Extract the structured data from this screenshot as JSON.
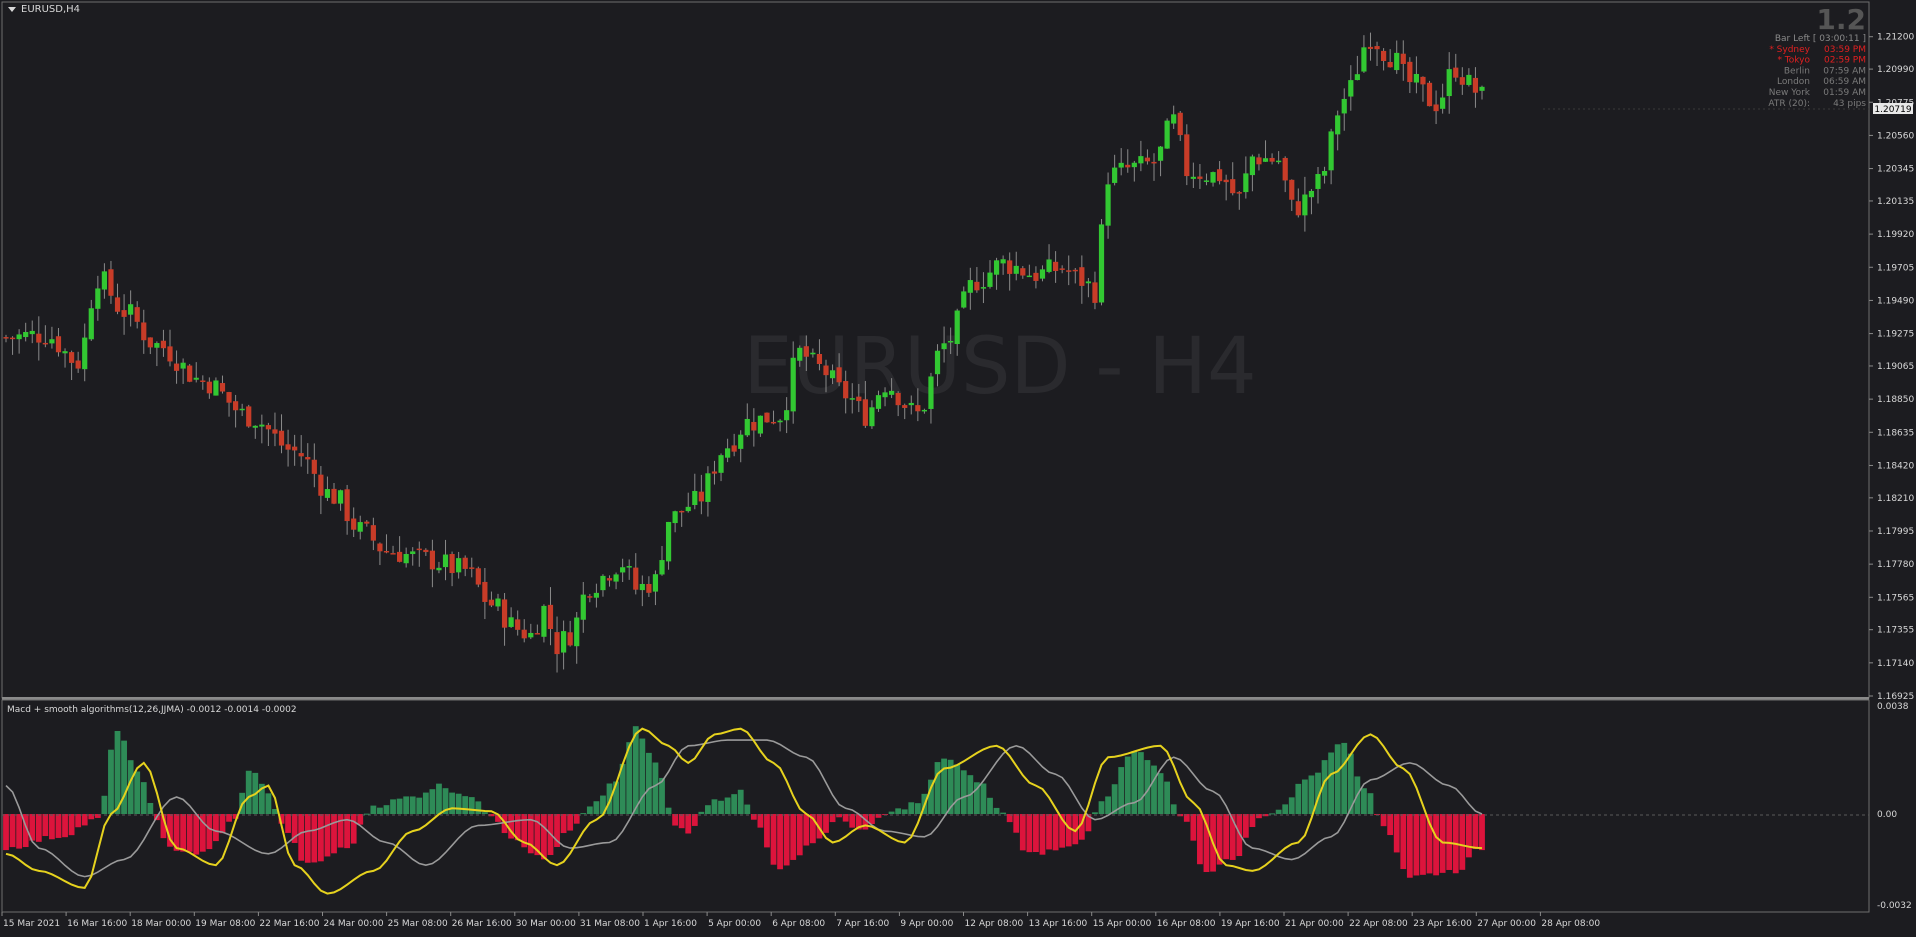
{
  "window": {
    "title": "EURUSD,H4"
  },
  "watermark": "EURUSD - H4",
  "price_readout": {
    "big": "1.2",
    "current": "1.20719"
  },
  "sessions": [
    {
      "name": "Bar Left",
      "time": "[ 03:00:11 ]",
      "color": "#8a8a8a"
    },
    {
      "name": "* Sydney",
      "time": "03:59 PM",
      "color": "#e02020"
    },
    {
      "name": "* Tokyo",
      "time": "02:59 PM",
      "color": "#e02020"
    },
    {
      "name": "Berlin",
      "time": "07:59 AM",
      "color": "#7a7a7a"
    },
    {
      "name": "London",
      "time": "06:59 AM",
      "color": "#7a7a7a"
    },
    {
      "name": "New York",
      "time": "01:59 AM",
      "color": "#7a7a7a"
    },
    {
      "name": "ATR (20):",
      "time": "43 pips",
      "color": "#7a7a7a"
    }
  ],
  "indicator": {
    "label": "Macd + smooth algorithms(12,26,JJMA) -0.0012 -0.0014 -0.0002"
  },
  "colors": {
    "bull": "#32c832",
    "bear": "#c83c28",
    "hist_pos": "#2e8b57",
    "hist_neg": "#dc143c",
    "macd_line": "#e6d21e",
    "signal_line": "#9a9a9a"
  },
  "chart_data": [
    {
      "type": "candlestick",
      "title": "EURUSD,H4",
      "ylim": [
        1.16925,
        1.2125
      ],
      "yticks": [
        "1.21200",
        "1.20990",
        "1.20775",
        "1.20560",
        "1.20345",
        "1.20135",
        "1.19920",
        "1.19705",
        "1.19490",
        "1.19275",
        "1.19065",
        "1.18850",
        "1.18635",
        "1.18420",
        "1.18210",
        "1.17995",
        "1.17780",
        "1.17565",
        "1.17355",
        "1.17140",
        "1.16925"
      ],
      "xticks": [
        "15 Mar 2021",
        "16 Mar 16:00",
        "18 Mar 00:00",
        "19 Mar 08:00",
        "22 Mar 16:00",
        "24 Mar 00:00",
        "25 Mar 08:00",
        "26 Mar 16:00",
        "30 Mar 00:00",
        "31 Mar 08:00",
        "1 Apr 16:00",
        "5 Apr 00:00",
        "6 Apr 08:00",
        "7 Apr 16:00",
        "9 Apr 00:00",
        "12 Apr 08:00",
        "13 Apr 16:00",
        "15 Apr 00:00",
        "16 Apr 08:00",
        "19 Apr 16:00",
        "21 Apr 00:00",
        "22 Apr 08:00",
        "23 Apr 16:00",
        "27 Apr 00:00",
        "28 Apr 08:00"
      ],
      "close_path": [
        [
          0,
          1.1925
        ],
        [
          6,
          1.1927
        ],
        [
          11,
          1.1909
        ],
        [
          14,
          1.1964
        ],
        [
          18,
          1.1942
        ],
        [
          23,
          1.192
        ],
        [
          30,
          1.1897
        ],
        [
          37,
          1.1874
        ],
        [
          44,
          1.1851
        ],
        [
          50,
          1.1822
        ],
        [
          54,
          1.18
        ],
        [
          58,
          1.1787
        ],
        [
          64,
          1.1781
        ],
        [
          70,
          1.1774
        ],
        [
          74,
          1.1752
        ],
        [
          78,
          1.1736
        ],
        [
          80,
          1.1732
        ],
        [
          82,
          1.1749
        ],
        [
          84,
          1.1725
        ],
        [
          86,
          1.1733
        ],
        [
          89,
          1.1765
        ],
        [
          94,
          1.1779
        ],
        [
          96,
          1.1762
        ],
        [
          99,
          1.1767
        ],
        [
          101,
          1.1807
        ],
        [
          105,
          1.1818
        ],
        [
          110,
          1.1855
        ],
        [
          113,
          1.187
        ],
        [
          118,
          1.1875
        ],
        [
          121,
          1.1915
        ],
        [
          124,
          1.1905
        ],
        [
          128,
          1.1888
        ],
        [
          131,
          1.1875
        ],
        [
          134,
          1.1895
        ],
        [
          139,
          1.1875
        ],
        [
          143,
          1.192
        ],
        [
          148,
          1.1962
        ],
        [
          152,
          1.1973
        ],
        [
          157,
          1.1966
        ],
        [
          161,
          1.197
        ],
        [
          164,
          1.1962
        ],
        [
          166,
          1.1955
        ],
        [
          168,
          1.203
        ],
        [
          172,
          1.2035
        ],
        [
          175,
          1.2038
        ],
        [
          178,
          1.2065
        ],
        [
          180,
          1.2033
        ],
        [
          185,
          1.203
        ],
        [
          188,
          1.2015
        ],
        [
          190,
          1.2042
        ],
        [
          194,
          1.204
        ],
        [
          196,
          1.2009
        ],
        [
          197,
          1.201
        ],
        [
          200,
          1.2025
        ],
        [
          204,
          1.208
        ],
        [
          208,
          1.212
        ],
        [
          211,
          1.2108
        ],
        [
          214,
          1.209
        ],
        [
          218,
          1.2077
        ],
        [
          221,
          1.21
        ],
        [
          223,
          1.2089
        ],
        [
          225,
          1.2081
        ]
      ]
    },
    {
      "type": "line+histogram",
      "title": "Macd + smooth algorithms(12,26,JJMA)",
      "ylim": [
        -0.0032,
        0.0038
      ],
      "yticks": [
        "0.0038",
        "0.00",
        "-0.0032"
      ],
      "histogram_anchors": [
        [
          0,
          -0.0012
        ],
        [
          8,
          -0.0008
        ],
        [
          14,
          -0.0002
        ],
        [
          17,
          0.003
        ],
        [
          20,
          0.0014
        ],
        [
          25,
          -0.0012
        ],
        [
          30,
          -0.0014
        ],
        [
          35,
          -0.0002
        ],
        [
          37,
          0.0016
        ],
        [
          40,
          0.0008
        ],
        [
          42,
          -0.0004
        ],
        [
          46,
          -0.0018
        ],
        [
          52,
          -0.0012
        ],
        [
          56,
          0.0003
        ],
        [
          62,
          0.0006
        ],
        [
          66,
          0.001
        ],
        [
          70,
          0.0007
        ],
        [
          74,
          0.0
        ],
        [
          77,
          -0.0008
        ],
        [
          82,
          -0.0016
        ],
        [
          86,
          -0.0006
        ],
        [
          89,
          0.0002
        ],
        [
          93,
          0.0012
        ],
        [
          96,
          0.003
        ],
        [
          99,
          0.0018
        ],
        [
          102,
          -0.0004
        ],
        [
          104,
          -0.0006
        ],
        [
          107,
          0.0004
        ],
        [
          112,
          0.0008
        ],
        [
          114,
          -0.0002
        ],
        [
          118,
          -0.002
        ],
        [
          123,
          -0.001
        ],
        [
          127,
          -0.0002
        ],
        [
          131,
          -0.0006
        ],
        [
          134,
          0.0
        ],
        [
          139,
          0.0004
        ],
        [
          143,
          0.002
        ],
        [
          148,
          0.0012
        ],
        [
          152,
          0.0
        ],
        [
          156,
          -0.0014
        ],
        [
          164,
          -0.001
        ],
        [
          167,
          0.0004
        ],
        [
          172,
          0.0022
        ],
        [
          176,
          0.0015
        ],
        [
          179,
          0.0
        ],
        [
          183,
          -0.002
        ],
        [
          187,
          -0.0016
        ],
        [
          191,
          -0.0002
        ],
        [
          194,
          0.0002
        ],
        [
          199,
          0.0014
        ],
        [
          204,
          0.0026
        ],
        [
          207,
          0.001
        ],
        [
          210,
          -0.0004
        ],
        [
          214,
          -0.0022
        ],
        [
          221,
          -0.002
        ],
        [
          225,
          -0.0012
        ]
      ],
      "macd_anchors": [
        [
          0,
          -0.0014
        ],
        [
          5,
          -0.002
        ],
        [
          12,
          -0.0026
        ],
        [
          16,
          0.0
        ],
        [
          21,
          0.0018
        ],
        [
          26,
          -0.0012
        ],
        [
          32,
          -0.0018
        ],
        [
          37,
          0.0006
        ],
        [
          40,
          0.001
        ],
        [
          44,
          -0.0018
        ],
        [
          49,
          -0.0028
        ],
        [
          56,
          -0.002
        ],
        [
          62,
          -0.0006
        ],
        [
          68,
          0.0002
        ],
        [
          74,
          0.0001
        ],
        [
          79,
          -0.001
        ],
        [
          84,
          -0.0018
        ],
        [
          90,
          -0.0002
        ],
        [
          97,
          0.003
        ],
        [
          101,
          0.0024
        ],
        [
          104,
          0.0018
        ],
        [
          108,
          0.0028
        ],
        [
          112,
          0.003
        ],
        [
          117,
          0.0018
        ],
        [
          122,
          0.0
        ],
        [
          126,
          -0.001
        ],
        [
          131,
          -0.0004
        ],
        [
          137,
          -0.001
        ],
        [
          143,
          0.0016
        ],
        [
          151,
          0.0024
        ],
        [
          157,
          0.001
        ],
        [
          163,
          -0.0006
        ],
        [
          168,
          0.002
        ],
        [
          176,
          0.0024
        ],
        [
          181,
          0.0004
        ],
        [
          186,
          -0.0018
        ],
        [
          190,
          -0.002
        ],
        [
          197,
          -0.001
        ],
        [
          202,
          0.0014
        ],
        [
          208,
          0.0028
        ],
        [
          213,
          0.0016
        ],
        [
          219,
          -0.001
        ],
        [
          225,
          -0.0012
        ]
      ],
      "signal_anchors": [
        [
          0,
          0.001
        ],
        [
          5,
          -0.0012
        ],
        [
          12,
          -0.0022
        ],
        [
          18,
          -0.0016
        ],
        [
          26,
          0.0006
        ],
        [
          32,
          -0.0006
        ],
        [
          40,
          -0.0014
        ],
        [
          46,
          -0.0006
        ],
        [
          52,
          -0.0002
        ],
        [
          58,
          -0.001
        ],
        [
          64,
          -0.0018
        ],
        [
          72,
          -0.0004
        ],
        [
          80,
          -0.0002
        ],
        [
          86,
          -0.0012
        ],
        [
          92,
          -0.001
        ],
        [
          99,
          0.001
        ],
        [
          104,
          0.0024
        ],
        [
          110,
          0.0026
        ],
        [
          116,
          0.0026
        ],
        [
          122,
          0.002
        ],
        [
          128,
          0.0002
        ],
        [
          134,
          -0.0006
        ],
        [
          140,
          -0.0008
        ],
        [
          146,
          0.0006
        ],
        [
          154,
          0.0024
        ],
        [
          160,
          0.0014
        ],
        [
          166,
          -0.0002
        ],
        [
          172,
          0.0004
        ],
        [
          178,
          0.002
        ],
        [
          184,
          0.0008
        ],
        [
          190,
          -0.0012
        ],
        [
          196,
          -0.0016
        ],
        [
          202,
          -0.0008
        ],
        [
          208,
          0.0012
        ],
        [
          214,
          0.0018
        ],
        [
          220,
          0.001
        ],
        [
          225,
          0.0
        ]
      ]
    }
  ]
}
